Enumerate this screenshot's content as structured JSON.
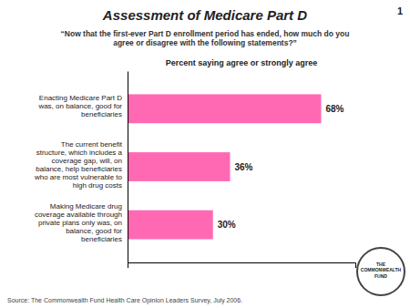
{
  "chart_data": {
    "type": "bar",
    "orientation": "horizontal",
    "title": "Assessment of Medicare Part D",
    "subtitle": "“Now that the first-ever Part D enrollment period has ended, how much do you\nagree or disagree with the following statements?”",
    "xlabel": "Percent saying agree or strongly agree",
    "categories": [
      "Making Medicare drug\ncoverage available through\nprivate plans only was, on\nbalance, good for\nbeneficiaries",
      "The current benefit\nstructure, which includes a\ncoverage gap, will, on\nbalance, help beneficiaries\nwho are most vulnerable to\nhigh drug costs",
      "Enacting Medicare Part D\nwas, on balance, good for\nbeneficiaries"
    ],
    "values": [
      30,
      36,
      68
    ],
    "value_labels": [
      "30%",
      "36%",
      "68%"
    ],
    "data_labels": true,
    "color": "#FF69B4",
    "xlim": [
      0,
      80
    ],
    "xticks": [],
    "tick_labels": "y",
    "annotations": [
      "Source: The Commonwealth Fund Health Care Opinion Leaders Survey, July 2006.",
      "1",
      "THE\nCOMMONWEALTH\nFUND"
    ]
  }
}
